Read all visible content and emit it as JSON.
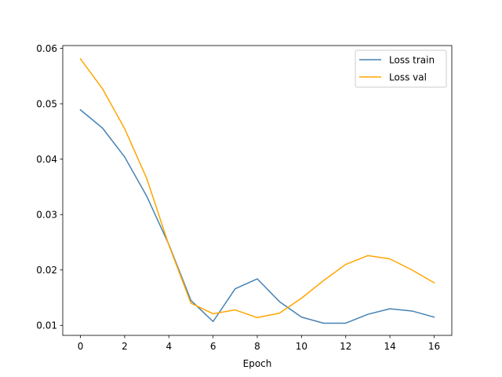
{
  "chart_data": {
    "type": "line",
    "xlabel": "Epoch",
    "ylabel": "",
    "xlim": [
      -0.8,
      16.8
    ],
    "ylim": [
      0.0082,
      0.0605
    ],
    "xticks": [
      0,
      2,
      4,
      6,
      8,
      10,
      12,
      14,
      16
    ],
    "xtick_labels": [
      "0",
      "2",
      "4",
      "6",
      "8",
      "10",
      "12",
      "14",
      "16"
    ],
    "yticks": [
      0.01,
      0.02,
      0.03,
      0.04,
      0.05,
      0.06
    ],
    "ytick_labels": [
      "0.01",
      "0.02",
      "0.03",
      "0.04",
      "0.05",
      "0.06"
    ],
    "grid": false,
    "legend_position": "top-right",
    "x": [
      0,
      1,
      2,
      3,
      4,
      5,
      6,
      7,
      8,
      9,
      10,
      11,
      12,
      13,
      14,
      15,
      16
    ],
    "series": [
      {
        "name": "Loss train",
        "color": "#4682b4",
        "values": [
          0.0489,
          0.0456,
          0.0404,
          0.0333,
          0.0246,
          0.0145,
          0.0107,
          0.0166,
          0.0184,
          0.0143,
          0.0115,
          0.0104,
          0.0104,
          0.012,
          0.013,
          0.0126,
          0.0115
        ]
      },
      {
        "name": "Loss val",
        "color": "#ffa500",
        "values": [
          0.0581,
          0.0527,
          0.0455,
          0.0365,
          0.0245,
          0.014,
          0.0121,
          0.0128,
          0.0114,
          0.0122,
          0.0149,
          0.0181,
          0.021,
          0.0226,
          0.022,
          0.02,
          0.0177
        ]
      }
    ]
  }
}
